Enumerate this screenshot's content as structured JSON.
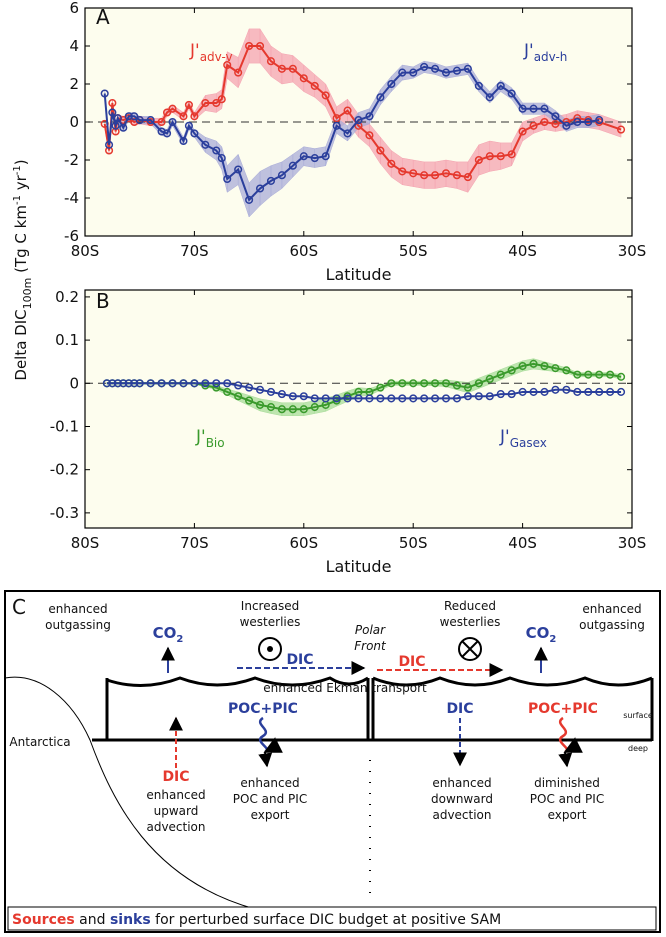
{
  "chart_data": [
    {
      "type": "line",
      "panel_label": "A",
      "xlabel": "Latitude",
      "xlim": [
        -80,
        -30
      ],
      "xticks": [
        {
          "value": -80,
          "label": "80S"
        },
        {
          "value": -70,
          "label": "70S"
        },
        {
          "value": -60,
          "label": "60S"
        },
        {
          "value": -50,
          "label": "50S"
        },
        {
          "value": -40,
          "label": "40S"
        },
        {
          "value": -30,
          "label": "30S"
        }
      ],
      "ylim": [
        -6,
        6
      ],
      "yticks": [
        6,
        4,
        2,
        0,
        -2,
        -4,
        -6
      ],
      "zero_line": true,
      "grid": false,
      "background": "#fdfdee",
      "x": [
        -78.2,
        -77.8,
        -77.5,
        -77.2,
        -77,
        -76.5,
        -76,
        -75.5,
        -75,
        -74,
        -73,
        -72.5,
        -72,
        -71,
        -70.5,
        -70,
        -69,
        -68,
        -67.5,
        -67,
        -66,
        -65,
        -64,
        -63,
        -62,
        -61,
        -60,
        -59,
        -58,
        -57,
        -56,
        -55,
        -54,
        -53,
        -52,
        -51,
        -50,
        -49,
        -48,
        -47,
        -46,
        -45,
        -44,
        -43,
        -42,
        -41,
        -40,
        -39,
        -38,
        -37,
        -36,
        -35,
        -34,
        -33,
        -31
      ],
      "series": [
        {
          "name": "J'",
          "name_sub": "adv-v",
          "color": "#e5392e",
          "band_color": "#f4a3b0",
          "values": [
            -0.1,
            -1.5,
            1.0,
            -0.5,
            0.2,
            0.1,
            0.2,
            0.0,
            0.1,
            0.0,
            0.0,
            0.5,
            0.7,
            0.3,
            0.9,
            0.3,
            1.0,
            1.0,
            1.2,
            3.0,
            2.6,
            4.0,
            4.0,
            3.2,
            2.8,
            2.8,
            2.3,
            1.9,
            1.4,
            0.2,
            0.6,
            -0.2,
            -0.7,
            -1.5,
            -2.2,
            -2.6,
            -2.7,
            -2.8,
            -2.8,
            -2.7,
            -2.8,
            -2.9,
            -2.0,
            -1.8,
            -1.8,
            -1.7,
            -0.5,
            -0.2,
            0.0,
            -0.1,
            0.0,
            0.2,
            0.1,
            0.0,
            -0.4
          ],
          "error": [
            0.2,
            0.2,
            0.2,
            0.2,
            0.2,
            0.2,
            0.2,
            0.2,
            0.2,
            0.2,
            0.2,
            0.2,
            0.2,
            0.2,
            0.2,
            0.2,
            0.4,
            0.5,
            0.5,
            0.7,
            0.8,
            0.9,
            0.9,
            0.8,
            0.8,
            0.7,
            0.7,
            0.6,
            0.6,
            0.6,
            0.6,
            0.6,
            0.6,
            0.7,
            0.7,
            0.7,
            0.7,
            0.7,
            0.7,
            0.7,
            0.7,
            0.8,
            0.8,
            0.8,
            0.7,
            0.6,
            0.5,
            0.4,
            0.4,
            0.4,
            0.4,
            0.4,
            0.4,
            0.4,
            0.4
          ]
        },
        {
          "name": "J'",
          "name_sub": "adv-h",
          "color": "#2b3f9c",
          "band_color": "#a9acd8",
          "values": [
            1.5,
            -1.2,
            0.5,
            -0.2,
            0.2,
            -0.3,
            0.3,
            0.3,
            0.1,
            0.1,
            -0.5,
            -0.6,
            0.0,
            -1.0,
            -0.2,
            -0.6,
            -1.2,
            -1.5,
            -1.9,
            -3.0,
            -2.5,
            -4.1,
            -3.5,
            -3.1,
            -2.8,
            -2.3,
            -1.8,
            -1.9,
            -1.8,
            -0.2,
            -0.6,
            0.1,
            0.3,
            1.3,
            2.0,
            2.6,
            2.6,
            2.9,
            2.8,
            2.6,
            2.7,
            2.8,
            1.9,
            1.3,
            1.9,
            1.5,
            0.7,
            0.7,
            0.7,
            0.3,
            -0.2,
            0.0,
            0.0,
            0.1,
            null
          ],
          "error": [
            0.2,
            0.2,
            0.2,
            0.2,
            0.2,
            0.2,
            0.2,
            0.2,
            0.2,
            0.2,
            0.2,
            0.2,
            0.2,
            0.2,
            0.2,
            0.2,
            0.4,
            0.5,
            0.6,
            0.7,
            0.8,
            0.9,
            0.9,
            0.8,
            0.7,
            0.6,
            0.5,
            0.5,
            0.5,
            0.4,
            0.4,
            0.4,
            0.4,
            0.4,
            0.4,
            0.4,
            0.3,
            0.3,
            0.3,
            0.3,
            0.3,
            0.3,
            0.3,
            0.3,
            0.3,
            0.3,
            0.3,
            0.3,
            0.3,
            0.3,
            0.3,
            0.3,
            0.3,
            0.3,
            null
          ]
        }
      ]
    },
    {
      "type": "line",
      "panel_label": "B",
      "xlabel": "Latitude",
      "xlim": [
        -80,
        -30
      ],
      "xticks": [
        {
          "value": -80,
          "label": "80S"
        },
        {
          "value": -70,
          "label": "70S"
        },
        {
          "value": -60,
          "label": "60S"
        },
        {
          "value": -50,
          "label": "50S"
        },
        {
          "value": -40,
          "label": "40S"
        },
        {
          "value": -30,
          "label": "30S"
        }
      ],
      "ylim": [
        -0.335,
        0.216
      ],
      "yticks": [
        0.2,
        0.1,
        0,
        -0.1,
        -0.2,
        -0.3
      ],
      "zero_line": true,
      "grid": false,
      "background": "#fdfdee",
      "x": [
        -78,
        -77.5,
        -77,
        -76.5,
        -76,
        -75.5,
        -75,
        -74,
        -73,
        -72,
        -71,
        -70,
        -69,
        -68,
        -67,
        -66,
        -65,
        -64,
        -63,
        -62,
        -61,
        -60,
        -59,
        -58,
        -57,
        -56,
        -55,
        -54,
        -53,
        -52,
        -51,
        -50,
        -49,
        -48,
        -47,
        -46,
        -45,
        -44,
        -43,
        -42,
        -41,
        -40,
        -39,
        -38,
        -37,
        -36,
        -35,
        -34,
        -33,
        -32,
        -31
      ],
      "series": [
        {
          "name": "J'",
          "name_sub": "Bio",
          "color": "#3a9a2c",
          "band_color": "#a8dc9a",
          "values": [
            0,
            0,
            0,
            0,
            0,
            0,
            0,
            0,
            0,
            0,
            0,
            0,
            -0.005,
            -0.01,
            -0.02,
            -0.03,
            -0.04,
            -0.05,
            -0.055,
            -0.06,
            -0.06,
            -0.06,
            -0.055,
            -0.05,
            -0.04,
            -0.03,
            -0.02,
            -0.02,
            -0.01,
            0.0,
            0.0,
            0.0,
            0.0,
            0.0,
            0.0,
            -0.005,
            -0.01,
            0.0,
            0.01,
            0.02,
            0.03,
            0.04,
            0.045,
            0.04,
            0.035,
            0.03,
            0.02,
            0.02,
            0.02,
            0.02,
            0.015
          ],
          "error": [
            0.002,
            0.002,
            0.002,
            0.002,
            0.002,
            0.002,
            0.002,
            0.002,
            0.002,
            0.002,
            0.002,
            0.002,
            0.003,
            0.005,
            0.007,
            0.01,
            0.012,
            0.014,
            0.015,
            0.015,
            0.015,
            0.015,
            0.015,
            0.015,
            0.013,
            0.012,
            0.01,
            0.008,
            0.006,
            0.005,
            0.005,
            0.005,
            0.005,
            0.006,
            0.008,
            0.01,
            0.012,
            0.012,
            0.012,
            0.012,
            0.012,
            0.012,
            0.012,
            0.01,
            0.008,
            0.006,
            0.005,
            0.005,
            0.005,
            0.005,
            0.005
          ]
        },
        {
          "name": "J'",
          "name_sub": "Gasex",
          "color": "#2b3f9c",
          "values": [
            0,
            0,
            0,
            0,
            0,
            0,
            0,
            0,
            0,
            0,
            0,
            0,
            0.0,
            0.0,
            0.0,
            -0.005,
            -0.01,
            -0.015,
            -0.02,
            -0.025,
            -0.03,
            -0.03,
            -0.035,
            -0.035,
            -0.035,
            -0.035,
            -0.035,
            -0.035,
            -0.035,
            -0.035,
            -0.035,
            -0.035,
            -0.035,
            -0.035,
            -0.035,
            -0.035,
            -0.03,
            -0.03,
            -0.03,
            -0.025,
            -0.025,
            -0.02,
            -0.02,
            -0.02,
            -0.015,
            -0.015,
            -0.02,
            -0.02,
            -0.02,
            -0.02,
            -0.02
          ]
        }
      ]
    }
  ],
  "shared_ylabel": [
    "Delta DIC",
    "100m",
    " (Tg C km",
    "-1",
    " yr",
    "-1",
    ")"
  ],
  "diagram": {
    "label": "C",
    "outgassing_left": [
      "enhanced",
      "outgassing"
    ],
    "co2_left": {
      "main": "CO",
      "sub": "2"
    },
    "westerlies_increased": [
      "Increased",
      "westerlies"
    ],
    "polar_front": [
      "Polar",
      "Front"
    ],
    "westerlies_reduced": [
      "Reduced",
      "westerlies"
    ],
    "co2_right": {
      "main": "CO",
      "sub": "2"
    },
    "outgassing_right": [
      "enhanced",
      "outgassing"
    ],
    "dic_surface_left": "DIC",
    "dic_surface_right": "DIC",
    "ekman": "enhanced Ekman transport",
    "surface": "surface",
    "deep": "deep",
    "antarctica": "Antarctica",
    "dic_upward": "DIC",
    "upward_text": [
      "enhanced",
      "upward",
      "advection"
    ],
    "poc_left": "POC+PIC",
    "poc_left_text": [
      "enhanced",
      "POC and PIC",
      "export"
    ],
    "dic_downward": "DIC",
    "downward_text": [
      "enhanced",
      "downward",
      "advection"
    ],
    "poc_right": "POC+PIC",
    "poc_right_text": [
      "diminished",
      "POC and PIC",
      "export"
    ],
    "caption": [
      "Sources",
      " and ",
      "sinks",
      " for perturbed surface DIC budget at positive SAM"
    ]
  }
}
